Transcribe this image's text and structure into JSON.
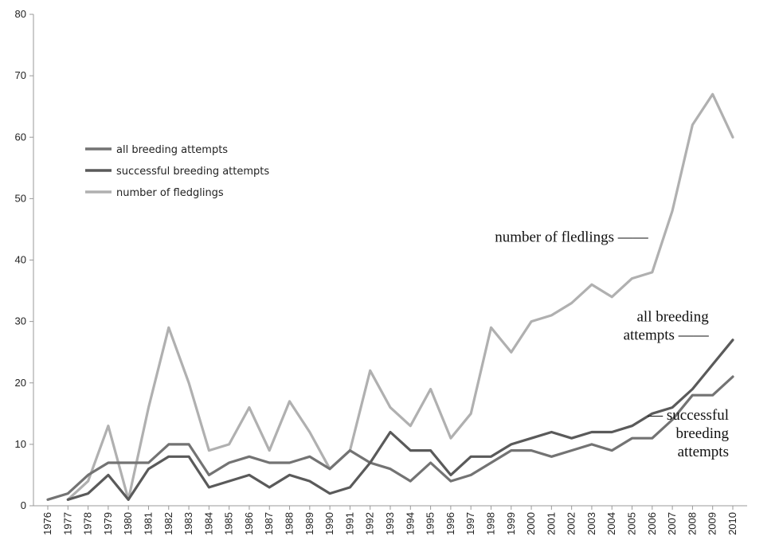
{
  "chart_data": {
    "type": "line",
    "title": "",
    "xlabel": "",
    "ylabel": "",
    "x": [
      1976,
      1977,
      1978,
      1979,
      1980,
      1981,
      1982,
      1983,
      1984,
      1985,
      1986,
      1987,
      1988,
      1989,
      1990,
      1991,
      1992,
      1993,
      1994,
      1995,
      1996,
      1997,
      1998,
      1999,
      2000,
      2001,
      2002,
      2003,
      2004,
      2005,
      2006,
      2007,
      2008,
      2009,
      2010
    ],
    "ylim": [
      0,
      80
    ],
    "yticks": [
      0,
      10,
      20,
      30,
      40,
      50,
      60,
      70,
      80
    ],
    "grid": false,
    "legend_position": "middle-left",
    "series": [
      {
        "name": "all breeding attempts",
        "color": "#737373",
        "values": [
          1,
          2,
          5,
          7,
          7,
          7,
          10,
          10,
          5,
          7,
          8,
          7,
          7,
          8,
          6,
          9,
          7,
          6,
          4,
          7,
          4,
          5,
          7,
          9,
          9,
          8,
          9,
          10,
          9,
          11,
          11,
          14,
          18,
          18,
          21
        ]
      },
      {
        "name": "successful breeding attempts",
        "color": "#5a5a5a",
        "values": [
          null,
          1,
          2,
          5,
          1,
          6,
          8,
          8,
          3,
          4,
          5,
          3,
          5,
          4,
          2,
          3,
          7,
          12,
          9,
          9,
          5,
          8,
          8,
          10,
          11,
          12,
          11,
          12,
          12,
          13,
          15,
          16,
          19,
          23,
          27
        ]
      },
      {
        "name": "number of fledglings",
        "color": "#b0b0b0",
        "values": [
          null,
          1,
          4,
          13,
          1,
          16,
          29,
          20,
          9,
          10,
          16,
          9,
          17,
          12,
          6,
          9,
          22,
          16,
          13,
          19,
          11,
          15,
          29,
          25,
          30,
          31,
          33,
          36,
          34,
          37,
          38,
          48,
          62,
          67,
          60
        ]
      }
    ],
    "annotations": [
      {
        "lines": [
          "number of fledlings ——"
        ],
        "x": 2006,
        "y": 43
      },
      {
        "lines": [
          "all breeding",
          "attempts ——"
        ],
        "x": 2009,
        "y": 30
      },
      {
        "lines": [
          "— successful",
          "breeding",
          "attempts"
        ],
        "x": 2010,
        "y": 14
      }
    ]
  }
}
